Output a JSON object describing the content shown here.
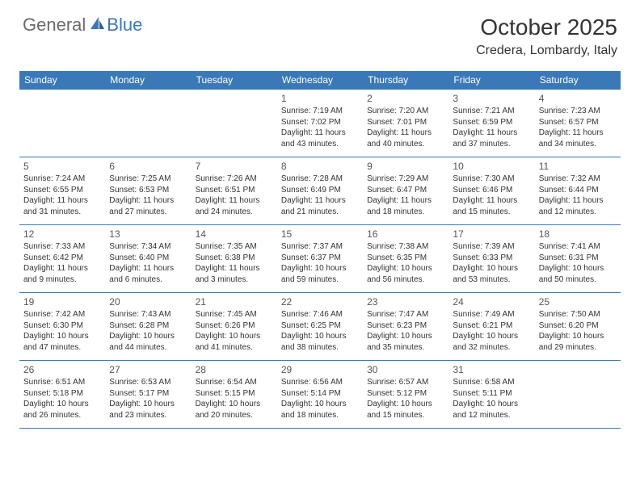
{
  "logo": {
    "text1": "General",
    "text2": "Blue"
  },
  "title": "October 2025",
  "location": "Credera, Lombardy, Italy",
  "colors": {
    "header_bg": "#3a78b8",
    "header_text": "#ffffff",
    "border": "#3a78b8",
    "logo_gray": "#6a6a6a",
    "logo_blue": "#3a78b8",
    "body_text": "#333333",
    "daynum": "#555555",
    "page_bg": "#ffffff"
  },
  "typography": {
    "title_fontsize": 28,
    "location_fontsize": 16,
    "logo_fontsize": 22,
    "header_fontsize": 12,
    "cell_fontsize": 10,
    "daynum_fontsize": 12
  },
  "dayHeaders": [
    "Sunday",
    "Monday",
    "Tuesday",
    "Wednesday",
    "Thursday",
    "Friday",
    "Saturday"
  ],
  "weeks": [
    [
      null,
      null,
      null,
      {
        "n": "1",
        "sr": "7:19 AM",
        "ss": "7:02 PM",
        "dl": "11 hours and 43 minutes."
      },
      {
        "n": "2",
        "sr": "7:20 AM",
        "ss": "7:01 PM",
        "dl": "11 hours and 40 minutes."
      },
      {
        "n": "3",
        "sr": "7:21 AM",
        "ss": "6:59 PM",
        "dl": "11 hours and 37 minutes."
      },
      {
        "n": "4",
        "sr": "7:23 AM",
        "ss": "6:57 PM",
        "dl": "11 hours and 34 minutes."
      }
    ],
    [
      {
        "n": "5",
        "sr": "7:24 AM",
        "ss": "6:55 PM",
        "dl": "11 hours and 31 minutes."
      },
      {
        "n": "6",
        "sr": "7:25 AM",
        "ss": "6:53 PM",
        "dl": "11 hours and 27 minutes."
      },
      {
        "n": "7",
        "sr": "7:26 AM",
        "ss": "6:51 PM",
        "dl": "11 hours and 24 minutes."
      },
      {
        "n": "8",
        "sr": "7:28 AM",
        "ss": "6:49 PM",
        "dl": "11 hours and 21 minutes."
      },
      {
        "n": "9",
        "sr": "7:29 AM",
        "ss": "6:47 PM",
        "dl": "11 hours and 18 minutes."
      },
      {
        "n": "10",
        "sr": "7:30 AM",
        "ss": "6:46 PM",
        "dl": "11 hours and 15 minutes."
      },
      {
        "n": "11",
        "sr": "7:32 AM",
        "ss": "6:44 PM",
        "dl": "11 hours and 12 minutes."
      }
    ],
    [
      {
        "n": "12",
        "sr": "7:33 AM",
        "ss": "6:42 PM",
        "dl": "11 hours and 9 minutes."
      },
      {
        "n": "13",
        "sr": "7:34 AM",
        "ss": "6:40 PM",
        "dl": "11 hours and 6 minutes."
      },
      {
        "n": "14",
        "sr": "7:35 AM",
        "ss": "6:38 PM",
        "dl": "11 hours and 3 minutes."
      },
      {
        "n": "15",
        "sr": "7:37 AM",
        "ss": "6:37 PM",
        "dl": "10 hours and 59 minutes."
      },
      {
        "n": "16",
        "sr": "7:38 AM",
        "ss": "6:35 PM",
        "dl": "10 hours and 56 minutes."
      },
      {
        "n": "17",
        "sr": "7:39 AM",
        "ss": "6:33 PM",
        "dl": "10 hours and 53 minutes."
      },
      {
        "n": "18",
        "sr": "7:41 AM",
        "ss": "6:31 PM",
        "dl": "10 hours and 50 minutes."
      }
    ],
    [
      {
        "n": "19",
        "sr": "7:42 AM",
        "ss": "6:30 PM",
        "dl": "10 hours and 47 minutes."
      },
      {
        "n": "20",
        "sr": "7:43 AM",
        "ss": "6:28 PM",
        "dl": "10 hours and 44 minutes."
      },
      {
        "n": "21",
        "sr": "7:45 AM",
        "ss": "6:26 PM",
        "dl": "10 hours and 41 minutes."
      },
      {
        "n": "22",
        "sr": "7:46 AM",
        "ss": "6:25 PM",
        "dl": "10 hours and 38 minutes."
      },
      {
        "n": "23",
        "sr": "7:47 AM",
        "ss": "6:23 PM",
        "dl": "10 hours and 35 minutes."
      },
      {
        "n": "24",
        "sr": "7:49 AM",
        "ss": "6:21 PM",
        "dl": "10 hours and 32 minutes."
      },
      {
        "n": "25",
        "sr": "7:50 AM",
        "ss": "6:20 PM",
        "dl": "10 hours and 29 minutes."
      }
    ],
    [
      {
        "n": "26",
        "sr": "6:51 AM",
        "ss": "5:18 PM",
        "dl": "10 hours and 26 minutes."
      },
      {
        "n": "27",
        "sr": "6:53 AM",
        "ss": "5:17 PM",
        "dl": "10 hours and 23 minutes."
      },
      {
        "n": "28",
        "sr": "6:54 AM",
        "ss": "5:15 PM",
        "dl": "10 hours and 20 minutes."
      },
      {
        "n": "29",
        "sr": "6:56 AM",
        "ss": "5:14 PM",
        "dl": "10 hours and 18 minutes."
      },
      {
        "n": "30",
        "sr": "6:57 AM",
        "ss": "5:12 PM",
        "dl": "10 hours and 15 minutes."
      },
      {
        "n": "31",
        "sr": "6:58 AM",
        "ss": "5:11 PM",
        "dl": "10 hours and 12 minutes."
      },
      null
    ]
  ],
  "labels": {
    "sunrise": "Sunrise: ",
    "sunset": "Sunset: ",
    "daylight": "Daylight: "
  }
}
